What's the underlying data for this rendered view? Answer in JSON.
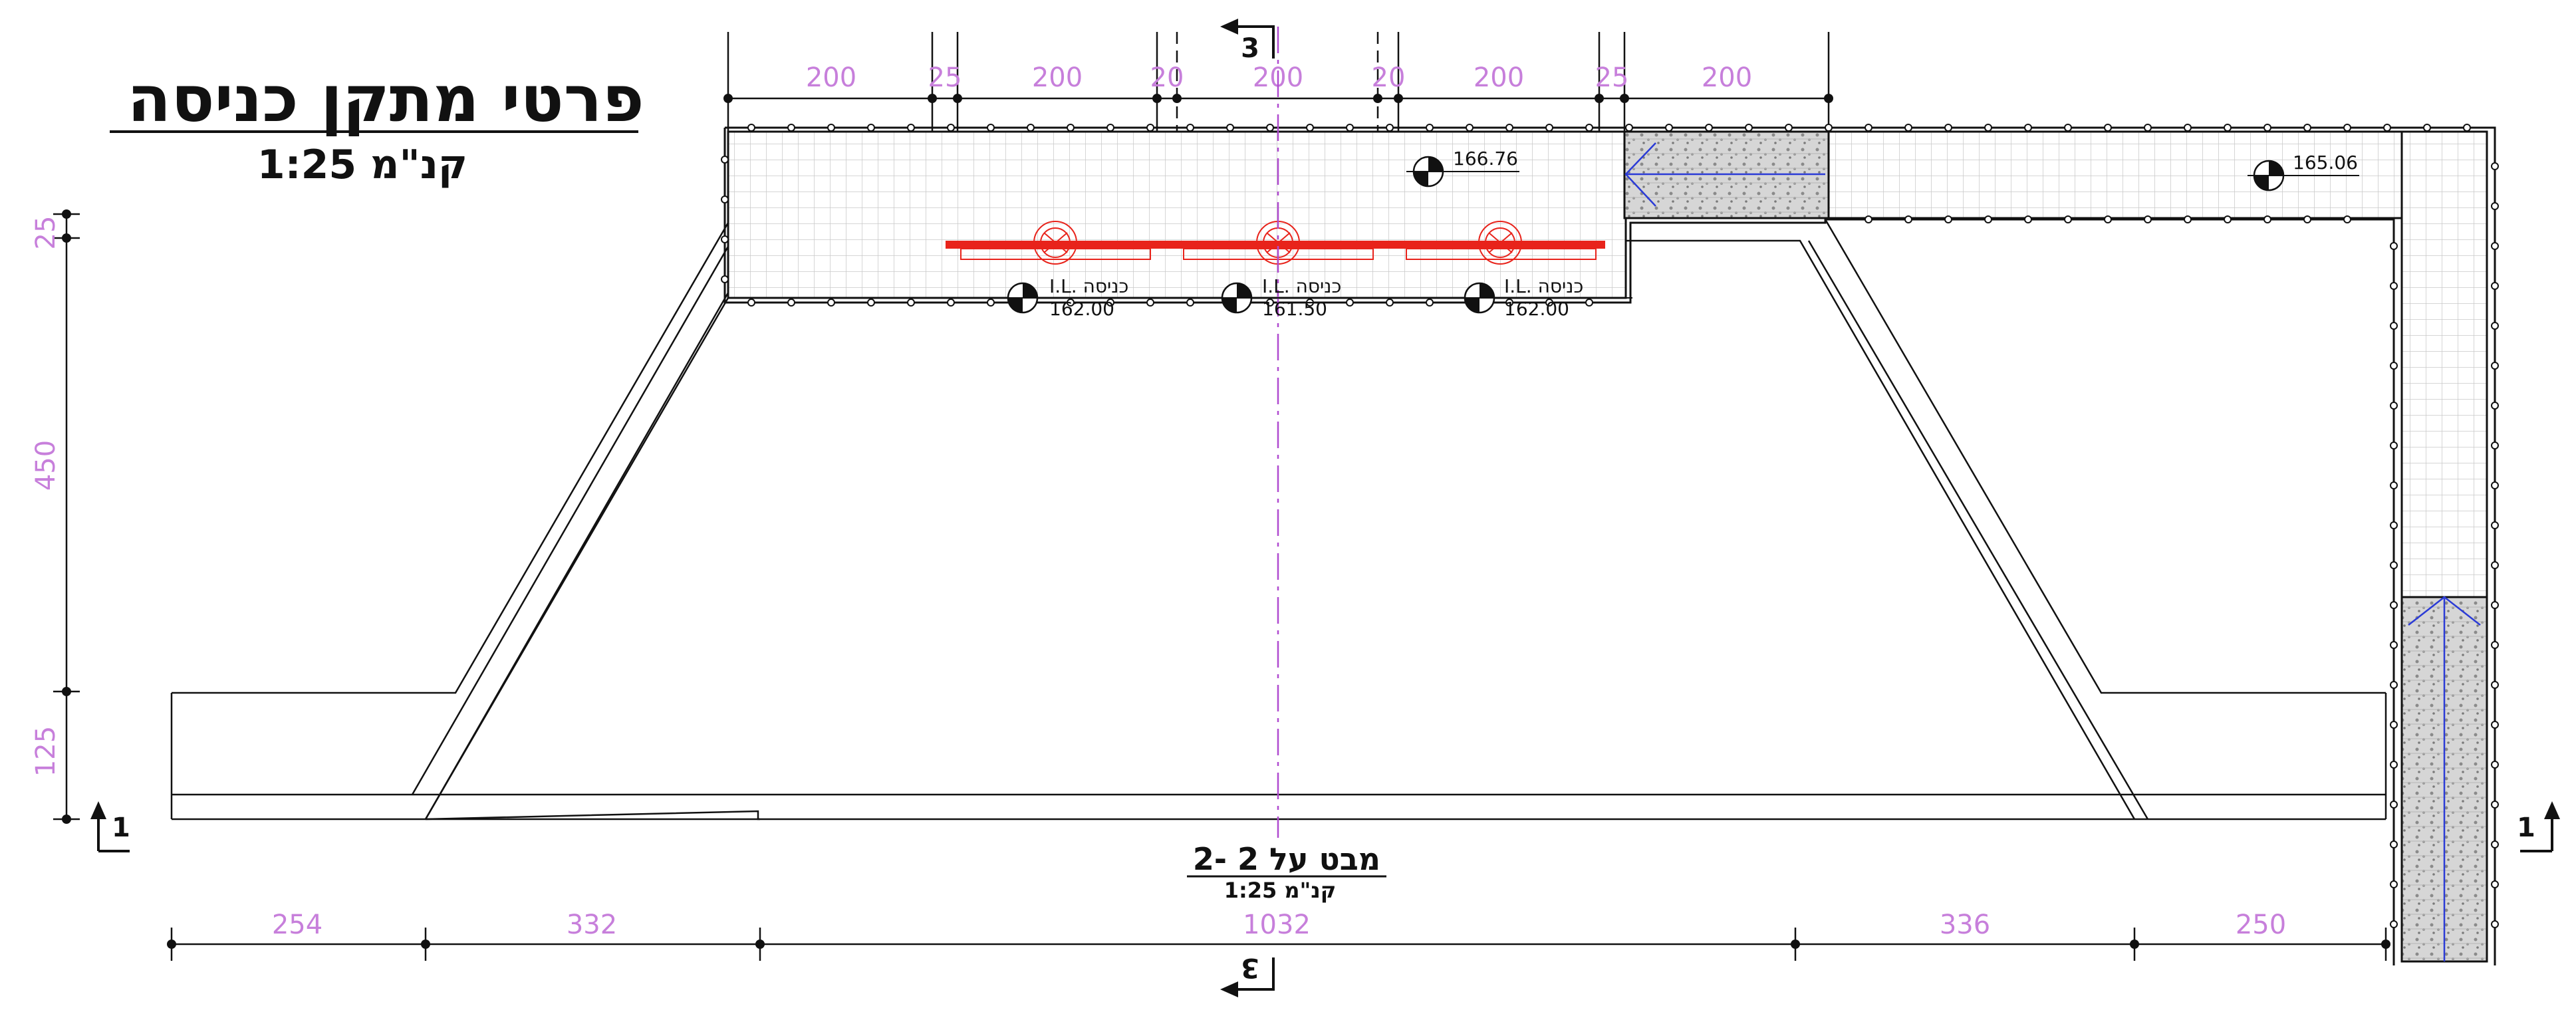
{
  "title": {
    "main": "פרטי מתקן כניסה",
    "scale": "קנ\"מ 1:25"
  },
  "view": {
    "title": "מבט על 2 -2",
    "scale": "קנ\"מ 1:25"
  },
  "dimensions": {
    "top": [
      "200",
      "25",
      "200",
      "20",
      "200",
      "20",
      "200",
      "25",
      "200"
    ],
    "bottom": [
      "254",
      "332",
      "1032",
      "336",
      "250"
    ],
    "left": [
      "25",
      "450",
      "125"
    ]
  },
  "levels": [
    {
      "label": "166.76"
    },
    {
      "label": "165.06"
    },
    {
      "label": "162.00",
      "prefix": "I.L. כניסה"
    },
    {
      "label": "161.50",
      "prefix": "I.L. כניסה"
    },
    {
      "label": "162.00",
      "prefix": "I.L. כניסה"
    }
  ],
  "sections": {
    "left": "1",
    "right": "1",
    "top": "3",
    "bottom": "3"
  },
  "colors": {
    "lines": "#111111",
    "dimension_text": "#c77fdb",
    "pipe": "#e8231b",
    "axis": "#b04bd0",
    "grid": "#bdbdbd",
    "flow": "#2b3bd6"
  }
}
